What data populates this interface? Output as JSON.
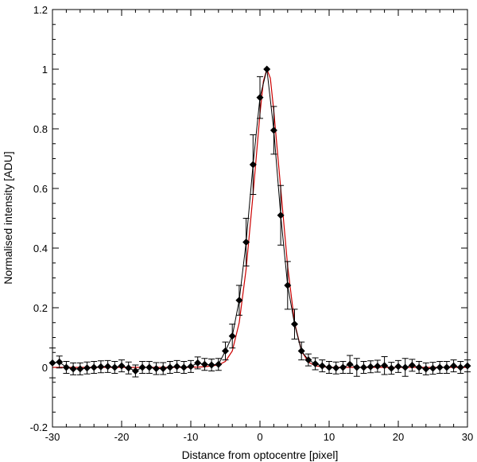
{
  "chart_data": {
    "type": "scatter",
    "xlabel": "Distance from optocentre [pixel]",
    "ylabel": "Normalised intensity [ADU]",
    "xlim": [
      -30,
      30
    ],
    "ylim": [
      -0.2,
      1.2
    ],
    "xticks": [
      -30,
      -20,
      -10,
      0,
      10,
      20,
      30
    ],
    "yticks": [
      -0.2,
      0,
      0.2,
      0.4,
      0.6,
      0.8,
      1,
      1.2
    ],
    "ytick_labels": [
      "-0.2",
      "0",
      "0.2",
      "0.4",
      "0.6",
      "0.8",
      "1",
      "1.2"
    ],
    "grid": false,
    "series": [
      {
        "style": "markers-with-errorbars-and-line",
        "color": "#000000",
        "marker": "diamond",
        "points": [
          {
            "x": -30,
            "y": 0.015,
            "err": 0.05
          },
          {
            "x": -29,
            "y": 0.018,
            "err": 0.02
          },
          {
            "x": -28,
            "y": 0.0,
            "err": 0.02
          },
          {
            "x": -27,
            "y": -0.005,
            "err": 0.02
          },
          {
            "x": -26,
            "y": -0.005,
            "err": 0.02
          },
          {
            "x": -25,
            "y": -0.002,
            "err": 0.02
          },
          {
            "x": -24,
            "y": 0.0,
            "err": 0.02
          },
          {
            "x": -23,
            "y": 0.002,
            "err": 0.02
          },
          {
            "x": -22,
            "y": 0.003,
            "err": 0.02
          },
          {
            "x": -21,
            "y": 0.0,
            "err": 0.02
          },
          {
            "x": -20,
            "y": 0.005,
            "err": 0.02
          },
          {
            "x": -19,
            "y": -0.002,
            "err": 0.02
          },
          {
            "x": -18,
            "y": -0.012,
            "err": 0.02
          },
          {
            "x": -17,
            "y": 0.0,
            "err": 0.02
          },
          {
            "x": -16,
            "y": 0.0,
            "err": 0.02
          },
          {
            "x": -15,
            "y": -0.004,
            "err": 0.02
          },
          {
            "x": -14,
            "y": -0.004,
            "err": 0.02
          },
          {
            "x": -13,
            "y": 0.0,
            "err": 0.02
          },
          {
            "x": -12,
            "y": 0.003,
            "err": 0.02
          },
          {
            "x": -11,
            "y": 0.0,
            "err": 0.02
          },
          {
            "x": -10,
            "y": 0.003,
            "err": 0.02
          },
          {
            "x": -9,
            "y": 0.015,
            "err": 0.02
          },
          {
            "x": -8,
            "y": 0.01,
            "err": 0.02
          },
          {
            "x": -7,
            "y": 0.008,
            "err": 0.02
          },
          {
            "x": -6,
            "y": 0.01,
            "err": 0.02
          },
          {
            "x": -5,
            "y": 0.055,
            "err": 0.03
          },
          {
            "x": -4,
            "y": 0.105,
            "err": 0.04
          },
          {
            "x": -3,
            "y": 0.225,
            "err": 0.05
          },
          {
            "x": -2,
            "y": 0.42,
            "err": 0.08
          },
          {
            "x": -1,
            "y": 0.68,
            "err": 0.1
          },
          {
            "x": 0,
            "y": 0.905,
            "err": 0.07
          },
          {
            "x": 1,
            "y": 1.0,
            "err": 0.0
          },
          {
            "x": 2,
            "y": 0.795,
            "err": 0.08
          },
          {
            "x": 3,
            "y": 0.51,
            "err": 0.1
          },
          {
            "x": 4,
            "y": 0.275,
            "err": 0.08
          },
          {
            "x": 5,
            "y": 0.145,
            "err": 0.05
          },
          {
            "x": 6,
            "y": 0.055,
            "err": 0.03
          },
          {
            "x": 7,
            "y": 0.025,
            "err": 0.02
          },
          {
            "x": 8,
            "y": 0.012,
            "err": 0.02
          },
          {
            "x": 9,
            "y": 0.005,
            "err": 0.02
          },
          {
            "x": 10,
            "y": 0.0,
            "err": 0.02
          },
          {
            "x": 11,
            "y": -0.002,
            "err": 0.02
          },
          {
            "x": 12,
            "y": 0.0,
            "err": 0.02
          },
          {
            "x": 13,
            "y": 0.01,
            "err": 0.03
          },
          {
            "x": 14,
            "y": 0.0,
            "err": 0.03
          },
          {
            "x": 15,
            "y": 0.0,
            "err": 0.02
          },
          {
            "x": 16,
            "y": 0.002,
            "err": 0.02
          },
          {
            "x": 17,
            "y": 0.004,
            "err": 0.02
          },
          {
            "x": 18,
            "y": 0.006,
            "err": 0.03
          },
          {
            "x": 19,
            "y": -0.003,
            "err": 0.02
          },
          {
            "x": 20,
            "y": 0.003,
            "err": 0.02
          },
          {
            "x": 21,
            "y": 0.0,
            "err": 0.03
          },
          {
            "x": 22,
            "y": 0.007,
            "err": 0.02
          },
          {
            "x": 23,
            "y": 0.0,
            "err": 0.02
          },
          {
            "x": 24,
            "y": -0.005,
            "err": 0.02
          },
          {
            "x": 25,
            "y": -0.003,
            "err": 0.02
          },
          {
            "x": 26,
            "y": 0.0,
            "err": 0.02
          },
          {
            "x": 27,
            "y": 0.0,
            "err": 0.02
          },
          {
            "x": 28,
            "y": 0.005,
            "err": 0.02
          },
          {
            "x": 29,
            "y": 0.0,
            "err": 0.02
          },
          {
            "x": 30,
            "y": 0.005,
            "err": 0.02
          }
        ]
      },
      {
        "style": "line",
        "color": "#cc0000",
        "points": [
          {
            "x": -30,
            "y": 0.0
          },
          {
            "x": -10,
            "y": 0.0
          },
          {
            "x": -8,
            "y": 0.002
          },
          {
            "x": -6,
            "y": 0.008
          },
          {
            "x": -5,
            "y": 0.02
          },
          {
            "x": -4,
            "y": 0.055
          },
          {
            "x": -3,
            "y": 0.15
          },
          {
            "x": -2,
            "y": 0.33
          },
          {
            "x": -1,
            "y": 0.58
          },
          {
            "x": 0,
            "y": 0.85
          },
          {
            "x": 0.5,
            "y": 0.96
          },
          {
            "x": 1,
            "y": 1.0
          },
          {
            "x": 1.5,
            "y": 0.97
          },
          {
            "x": 2,
            "y": 0.86
          },
          {
            "x": 3,
            "y": 0.6
          },
          {
            "x": 4,
            "y": 0.34
          },
          {
            "x": 5,
            "y": 0.15
          },
          {
            "x": 6,
            "y": 0.055
          },
          {
            "x": 7,
            "y": 0.018
          },
          {
            "x": 8,
            "y": 0.005
          },
          {
            "x": 10,
            "y": 0.0
          },
          {
            "x": 30,
            "y": 0.0
          }
        ]
      }
    ]
  }
}
